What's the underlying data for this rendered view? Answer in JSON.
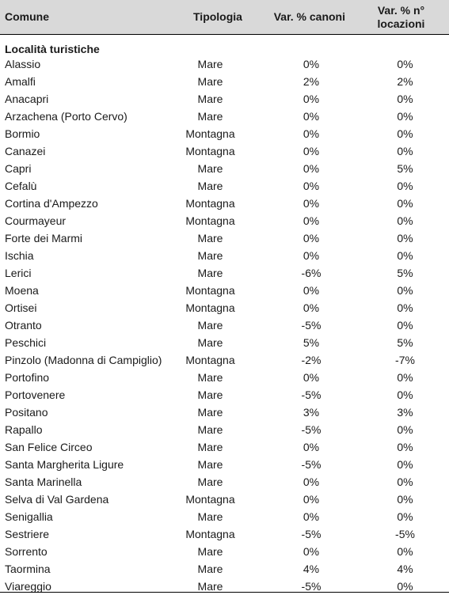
{
  "headers": {
    "comune": "Comune",
    "tipologia": "Tipologia",
    "canoni": "Var. % canoni",
    "locazioni_line1": "Var. % n°",
    "locazioni_line2": "locazioni"
  },
  "section_title": "Località turistiche",
  "rows": [
    {
      "comune": "Alassio",
      "tipologia": "Mare",
      "canoni": "0%",
      "locazioni": "0%"
    },
    {
      "comune": "Amalfi",
      "tipologia": "Mare",
      "canoni": "2%",
      "locazioni": "2%"
    },
    {
      "comune": "Anacapri",
      "tipologia": "Mare",
      "canoni": "0%",
      "locazioni": "0%"
    },
    {
      "comune": "Arzachena (Porto Cervo)",
      "tipologia": "Mare",
      "canoni": "0%",
      "locazioni": "0%"
    },
    {
      "comune": "Bormio",
      "tipologia": "Montagna",
      "canoni": "0%",
      "locazioni": "0%"
    },
    {
      "comune": "Canazei",
      "tipologia": "Montagna",
      "canoni": "0%",
      "locazioni": "0%"
    },
    {
      "comune": "Capri",
      "tipologia": "Mare",
      "canoni": "0%",
      "locazioni": "5%"
    },
    {
      "comune": "Cefalù",
      "tipologia": "Mare",
      "canoni": "0%",
      "locazioni": "0%"
    },
    {
      "comune": "Cortina d'Ampezzo",
      "tipologia": "Montagna",
      "canoni": "0%",
      "locazioni": "0%"
    },
    {
      "comune": "Courmayeur",
      "tipologia": "Montagna",
      "canoni": "0%",
      "locazioni": "0%"
    },
    {
      "comune": "Forte dei Marmi",
      "tipologia": "Mare",
      "canoni": "0%",
      "locazioni": "0%"
    },
    {
      "comune": "Ischia",
      "tipologia": "Mare",
      "canoni": "0%",
      "locazioni": "0%"
    },
    {
      "comune": "Lerici",
      "tipologia": "Mare",
      "canoni": "-6%",
      "locazioni": "5%"
    },
    {
      "comune": "Moena",
      "tipologia": "Montagna",
      "canoni": "0%",
      "locazioni": "0%"
    },
    {
      "comune": "Ortisei",
      "tipologia": "Montagna",
      "canoni": "0%",
      "locazioni": "0%"
    },
    {
      "comune": "Otranto",
      "tipologia": "Mare",
      "canoni": "-5%",
      "locazioni": "0%"
    },
    {
      "comune": "Peschici",
      "tipologia": "Mare",
      "canoni": "5%",
      "locazioni": "5%"
    },
    {
      "comune": "Pinzolo (Madonna di Campiglio)",
      "tipologia": "Montagna",
      "canoni": "-2%",
      "locazioni": "-7%"
    },
    {
      "comune": "Portofino",
      "tipologia": "Mare",
      "canoni": "0%",
      "locazioni": "0%"
    },
    {
      "comune": "Portovenere",
      "tipologia": "Mare",
      "canoni": "-5%",
      "locazioni": "0%"
    },
    {
      "comune": "Positano",
      "tipologia": "Mare",
      "canoni": "3%",
      "locazioni": "3%"
    },
    {
      "comune": "Rapallo",
      "tipologia": "Mare",
      "canoni": "-5%",
      "locazioni": "0%"
    },
    {
      "comune": "San Felice Circeo",
      "tipologia": "Mare",
      "canoni": "0%",
      "locazioni": "0%"
    },
    {
      "comune": "Santa Margherita Ligure",
      "tipologia": "Mare",
      "canoni": "-5%",
      "locazioni": "0%"
    },
    {
      "comune": "Santa Marinella",
      "tipologia": "Mare",
      "canoni": "0%",
      "locazioni": "0%"
    },
    {
      "comune": "Selva di Val Gardena",
      "tipologia": "Montagna",
      "canoni": "0%",
      "locazioni": "0%"
    },
    {
      "comune": "Senigallia",
      "tipologia": "Mare",
      "canoni": "0%",
      "locazioni": "0%"
    },
    {
      "comune": "Sestriere",
      "tipologia": "Montagna",
      "canoni": "-5%",
      "locazioni": "-5%"
    },
    {
      "comune": "Sorrento",
      "tipologia": "Mare",
      "canoni": "0%",
      "locazioni": "0%"
    },
    {
      "comune": "Taormina",
      "tipologia": "Mare",
      "canoni": "4%",
      "locazioni": "4%"
    },
    {
      "comune": "Viareggio",
      "tipologia": "Mare",
      "canoni": "-5%",
      "locazioni": "0%"
    }
  ]
}
